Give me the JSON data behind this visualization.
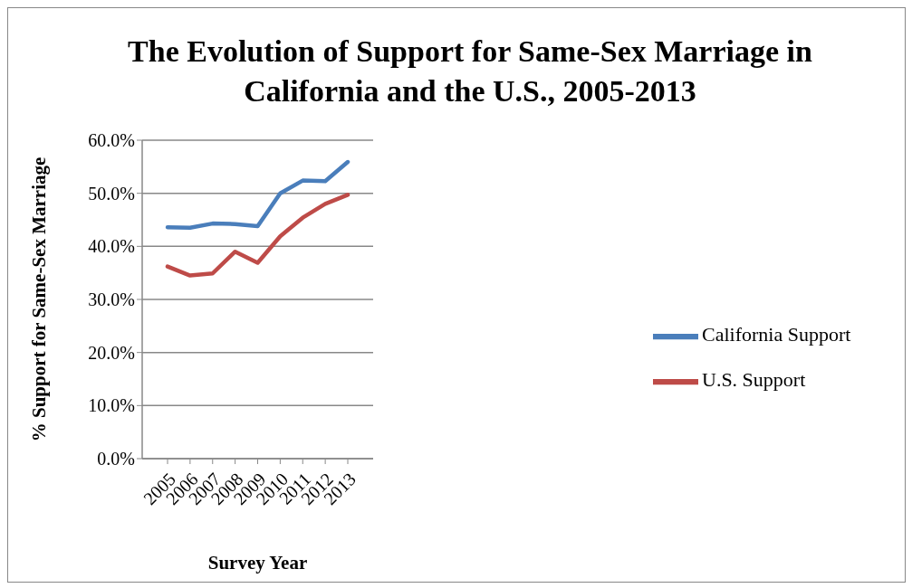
{
  "chart_data": {
    "type": "line",
    "title": "The Evolution of Support for Same-Sex Marriage in California and the U.S., 2005-2013",
    "xlabel": "Survey Year",
    "ylabel": "% Support for Same-Sex Marriage",
    "categories": [
      "2005",
      "2006",
      "2007",
      "2008",
      "2009",
      "2010",
      "2011",
      "2012",
      "2013"
    ],
    "series": [
      {
        "name": "California Support",
        "color": "#4a7ebb",
        "values": [
          43.6,
          43.5,
          44.3,
          44.2,
          43.8,
          50.0,
          52.4,
          52.3,
          55.9
        ]
      },
      {
        "name": "U.S. Support",
        "color": "#be4b48",
        "values": [
          36.2,
          34.5,
          34.9,
          39.0,
          36.9,
          41.9,
          45.4,
          48.0,
          49.7
        ]
      }
    ],
    "ylim": [
      0,
      60
    ],
    "yticks": [
      {
        "value": 0,
        "label": "0.0%"
      },
      {
        "value": 10,
        "label": "10.0%"
      },
      {
        "value": 20,
        "label": "20.0%"
      },
      {
        "value": 30,
        "label": "30.0%"
      },
      {
        "value": 40,
        "label": "40.0%"
      },
      {
        "value": 50,
        "label": "50.0%"
      },
      {
        "value": 60,
        "label": "60.0%"
      }
    ],
    "grid": "y",
    "legend": "right",
    "marker": "none",
    "line_style": "solid"
  }
}
